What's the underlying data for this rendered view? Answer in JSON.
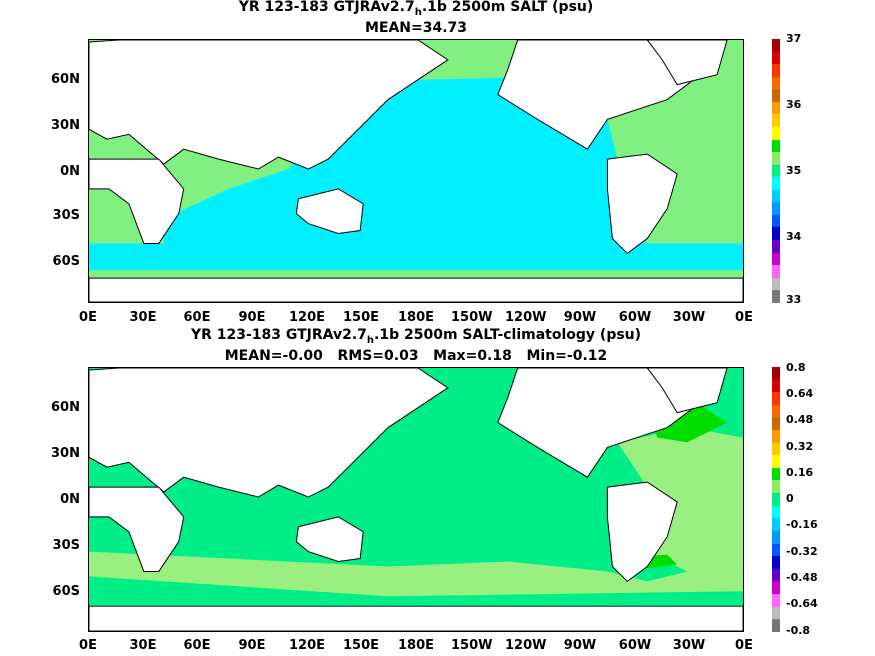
{
  "panel_top": {
    "title_pre": "YR 123-183 GTJRAv2.7",
    "title_sub": "h",
    "title_post": ".1b 2500m SALT (psu)",
    "stats": "MEAN=34.73",
    "colorbar_labels": [
      "37",
      "36",
      "35",
      "34",
      "33"
    ],
    "colorbar_colors": [
      "#a00000",
      "#dd0000",
      "#ff3300",
      "#ff6600",
      "#cc6600",
      "#ff9900",
      "#ffcc00",
      "#ffff00",
      "#00dd00",
      "#88ee66",
      "#00ee88",
      "#00ffff",
      "#00ccff",
      "#0099ff",
      "#0055ff",
      "#0000cc",
      "#6600cc",
      "#cc00cc",
      "#ff66ff",
      "#bbbbbb",
      "#777777"
    ]
  },
  "panel_bottom": {
    "title_pre": "YR 123-183 GTJRAv2.7",
    "title_sub": "h",
    "title_post": ".1b 2500m SALT-climatology (psu)",
    "stats": "MEAN=-0.00   RMS=0.03   Max=0.18   Min=-0.12",
    "colorbar_labels": [
      "0.8",
      "0.64",
      "0.48",
      "0.32",
      "0.16",
      "0",
      "-0.16",
      "-0.32",
      "-0.48",
      "-0.64",
      "-0.8"
    ],
    "colorbar_colors": [
      "#a00000",
      "#dd0000",
      "#ff3300",
      "#ff6600",
      "#cc6600",
      "#ff9900",
      "#ffcc00",
      "#ffff00",
      "#00dd00",
      "#88ee66",
      "#00ee88",
      "#00ffff",
      "#00ccff",
      "#0099ff",
      "#0055ff",
      "#0000cc",
      "#6600cc",
      "#cc00cc",
      "#ff66ff",
      "#bbbbbb",
      "#777777"
    ]
  },
  "lat_labels": [
    "60N",
    "30N",
    "0N",
    "30S",
    "60S"
  ],
  "lon_labels": [
    "0E",
    "30E",
    "60E",
    "90E",
    "120E",
    "150E",
    "180E",
    "150W",
    "120W",
    "90W",
    "60W",
    "30W",
    "0E"
  ],
  "colors": {
    "ocean_fresh": "#00f0ff",
    "ocean_salty": "#80f080",
    "diff_base": "#00ee88",
    "diff_pos": "#99f080",
    "diff_high": "#00dd00",
    "land": "#ffffff",
    "coast": "#000000"
  }
}
